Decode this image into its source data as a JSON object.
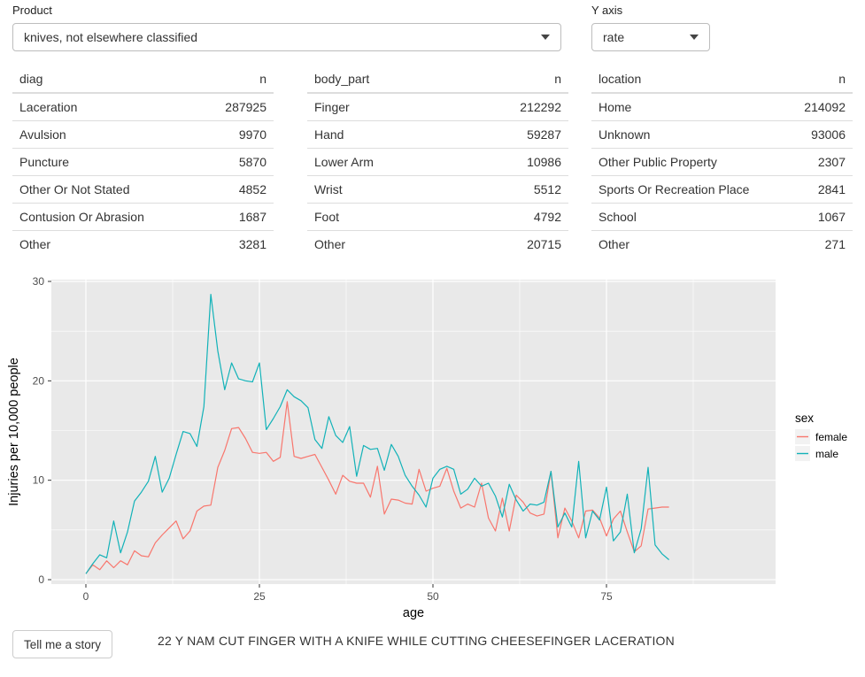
{
  "controls": {
    "product_label": "Product",
    "product_value": "knives, not elsewhere classified",
    "yaxis_label": "Y axis",
    "yaxis_value": "rate"
  },
  "tables": [
    {
      "columns": [
        "diag",
        "n"
      ],
      "rows": [
        [
          "Laceration",
          "287925"
        ],
        [
          "Avulsion",
          "9970"
        ],
        [
          "Puncture",
          "5870"
        ],
        [
          "Other Or Not Stated",
          "4852"
        ],
        [
          "Contusion Or Abrasion",
          "1687"
        ],
        [
          "Other",
          "3281"
        ]
      ]
    },
    {
      "columns": [
        "body_part",
        "n"
      ],
      "rows": [
        [
          "Finger",
          "212292"
        ],
        [
          "Hand",
          "59287"
        ],
        [
          "Lower Arm",
          "10986"
        ],
        [
          "Wrist",
          "5512"
        ],
        [
          "Foot",
          "4792"
        ],
        [
          "Other",
          "20715"
        ]
      ]
    },
    {
      "columns": [
        "location",
        "n"
      ],
      "rows": [
        [
          "Home",
          "214092"
        ],
        [
          "Unknown",
          "93006"
        ],
        [
          "Other Public Property",
          "2307"
        ],
        [
          "Sports Or Recreation Place",
          "2841"
        ],
        [
          "School",
          "1067"
        ],
        [
          "Other",
          "271"
        ]
      ]
    }
  ],
  "chart_data": {
    "type": "line",
    "xlabel": "age",
    "ylabel": "Injuries per 10,000 people",
    "x_ticks": [
      0,
      25,
      50,
      75
    ],
    "y_ticks": [
      0,
      10,
      20,
      30
    ],
    "x_minor": [
      12.5,
      37.5,
      62.5,
      87.5
    ],
    "y_minor": [
      5,
      15,
      25
    ],
    "xlim": [
      -5,
      99.5
    ],
    "ylim": [
      -0.4,
      30.2
    ],
    "grid": "on",
    "panel_color": "#E9E9E9",
    "grid_color": "#FFFFFF",
    "legend": {
      "title": "sex",
      "position": "right"
    },
    "x_start": 0,
    "x_step": 1,
    "series": [
      {
        "name": "female",
        "color": "#F8766D",
        "values": [
          0.6,
          1.5,
          1.0,
          1.9,
          1.2,
          1.9,
          1.5,
          2.9,
          2.4,
          2.3,
          3.7,
          4.5,
          5.2,
          5.9,
          4.1,
          4.9,
          6.9,
          7.4,
          7.5,
          11.3,
          13.0,
          15.2,
          15.3,
          14.2,
          12.8,
          12.7,
          12.8,
          11.9,
          12.3,
          17.9,
          12.4,
          12.2,
          12.4,
          12.6,
          11.3,
          10.0,
          8.6,
          10.5,
          9.9,
          9.7,
          9.7,
          8.3,
          11.4,
          6.6,
          8.1,
          8.0,
          7.7,
          7.6,
          11.1,
          8.9,
          9.2,
          9.4,
          11.2,
          8.9,
          7.2,
          7.6,
          7.3,
          9.7,
          6.2,
          4.9,
          8.2,
          4.9,
          8.5,
          7.8,
          6.7,
          6.4,
          6.6,
          10.9,
          4.2,
          7.2,
          5.9,
          4.2,
          6.9,
          7.0,
          6.2,
          4.4,
          6.1,
          6.9,
          4.8,
          2.8,
          3.4,
          7.1,
          7.2,
          7.3,
          7.3
        ]
      },
      {
        "name": "male",
        "color": "#12B2B8",
        "values": [
          0.6,
          1.6,
          2.5,
          2.2,
          5.9,
          2.7,
          4.8,
          7.9,
          8.8,
          9.9,
          12.4,
          8.8,
          10.2,
          12.6,
          14.9,
          14.7,
          13.4,
          17.4,
          28.7,
          23.0,
          19.1,
          21.8,
          20.2,
          20.0,
          19.9,
          21.8,
          15.1,
          16.2,
          17.4,
          19.1,
          18.4,
          18.0,
          17.3,
          14.1,
          13.2,
          16.4,
          14.5,
          13.8,
          15.4,
          10.4,
          13.5,
          13.1,
          13.2,
          11.0,
          13.6,
          12.4,
          10.5,
          9.4,
          8.5,
          7.3,
          10.2,
          11.1,
          11.4,
          11.1,
          8.6,
          9.1,
          10.2,
          9.4,
          9.7,
          8.4,
          6.3,
          9.6,
          8.0,
          6.9,
          7.6,
          7.5,
          7.8,
          10.9,
          5.3,
          6.7,
          5.3,
          11.9,
          4.2,
          6.9,
          6.0,
          9.3,
          3.9,
          4.8,
          8.6,
          2.7,
          5.1,
          11.3,
          3.5,
          2.6,
          2.0
        ]
      }
    ]
  },
  "story": {
    "button_label": "Tell me a story",
    "narrative": "22 Y NAM CUT FINGER WITH A KNIFE WHILE CUTTING CHEESEFINGER LACERATION"
  }
}
